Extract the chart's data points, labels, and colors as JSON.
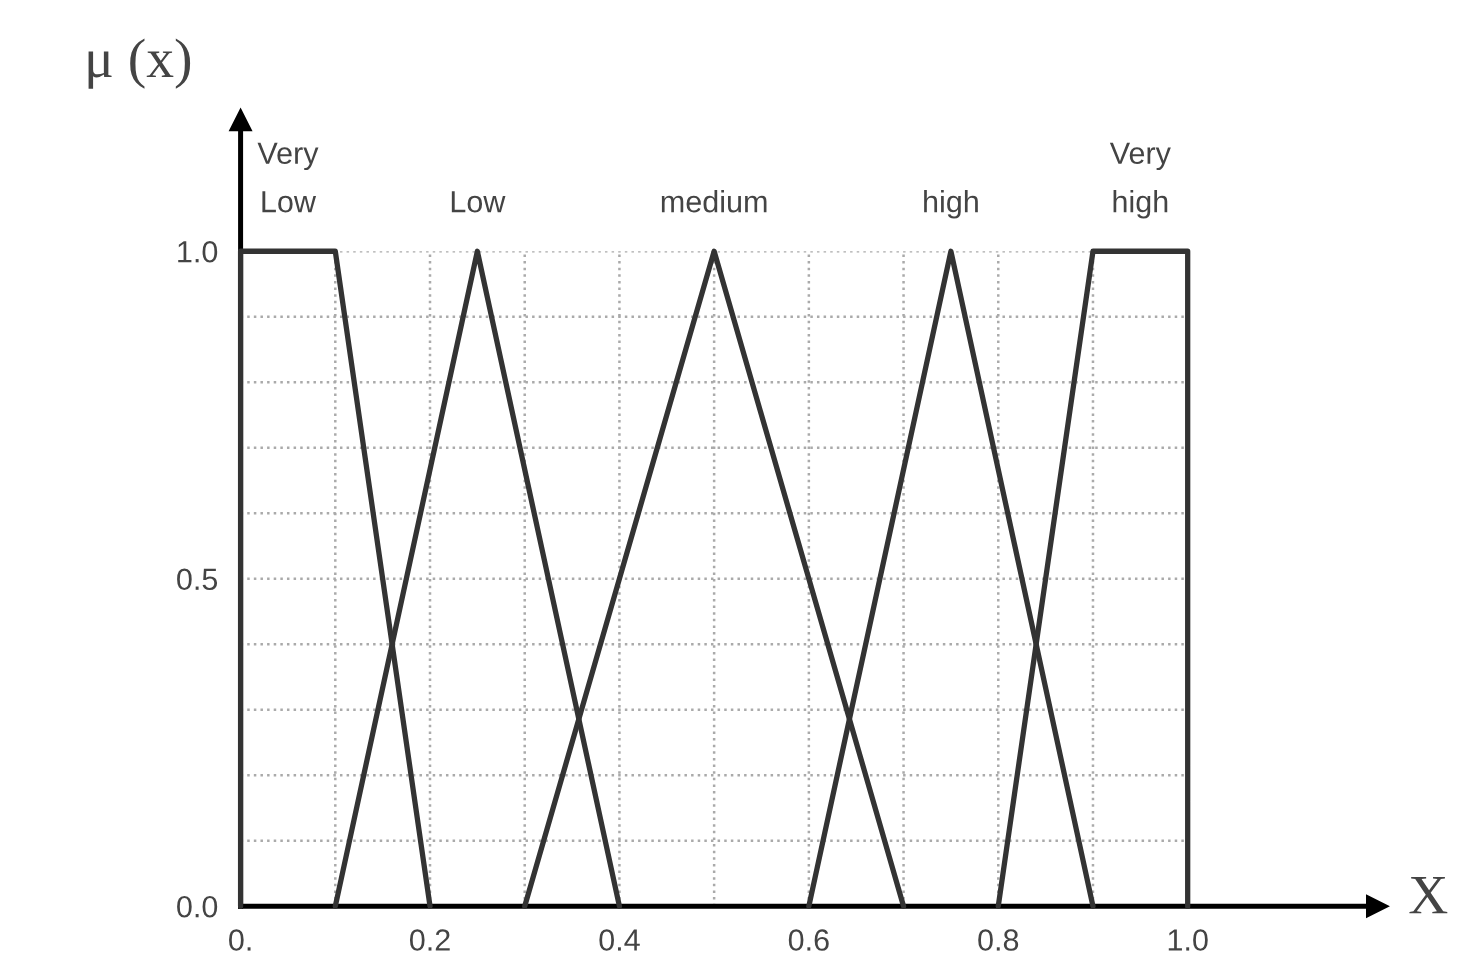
{
  "chart_data": {
    "type": "line",
    "xlabel": "X",
    "ylabel": "μ (x)",
    "series": [
      {
        "name": "Very\nLow",
        "color": "#333333",
        "x": [
          0,
          0,
          0.1,
          0.2
        ],
        "values": [
          0,
          1,
          1,
          0
        ]
      },
      {
        "name": "Low",
        "color": "#333333",
        "x": [
          0.1,
          0.25,
          0.4
        ],
        "values": [
          0,
          1,
          0
        ]
      },
      {
        "name": "medium",
        "color": "#333333",
        "x": [
          0.3,
          0.5,
          0.7
        ],
        "values": [
          0,
          1,
          0
        ]
      },
      {
        "name": "high",
        "color": "#333333",
        "x": [
          0.6,
          0.75,
          0.9
        ],
        "values": [
          0,
          1,
          0
        ]
      },
      {
        "name": "Very\nhigh",
        "color": "#333333",
        "x": [
          0.8,
          0.9,
          1.0,
          1.0
        ],
        "values": [
          0,
          1,
          1,
          0
        ]
      }
    ],
    "xlim": [
      0,
      1.2
    ],
    "ylim": [
      0,
      1.2
    ],
    "xticks": [
      {
        "value": 0,
        "label": "0."
      },
      {
        "value": 0.1,
        "label": null
      },
      {
        "value": 0.2,
        "label": "0.2"
      },
      {
        "value": 0.3,
        "label": null
      },
      {
        "value": 0.4,
        "label": "0.4"
      },
      {
        "value": 0.5,
        "label": null
      },
      {
        "value": 0.6,
        "label": "0.6"
      },
      {
        "value": 0.7,
        "label": null
      },
      {
        "value": 0.8,
        "label": "0.8"
      },
      {
        "value": 0.9,
        "label": null
      },
      {
        "value": 1.0,
        "label": "1.0"
      }
    ],
    "yticks": [
      {
        "value": 0,
        "label": "0.0"
      },
      {
        "value": 0.1,
        "label": null
      },
      {
        "value": 0.2,
        "label": null
      },
      {
        "value": 0.3,
        "label": null
      },
      {
        "value": 0.4,
        "label": null
      },
      {
        "value": 0.5,
        "label": "0.5"
      },
      {
        "value": 0.6,
        "label": null
      },
      {
        "value": 0.7,
        "label": null
      },
      {
        "value": 0.8,
        "label": null
      },
      {
        "value": 0.9,
        "label": null
      },
      {
        "value": 1.0,
        "label": "1.0"
      }
    ],
    "grid": true,
    "marker": "none",
    "line_style": "solid",
    "legend": false
  }
}
